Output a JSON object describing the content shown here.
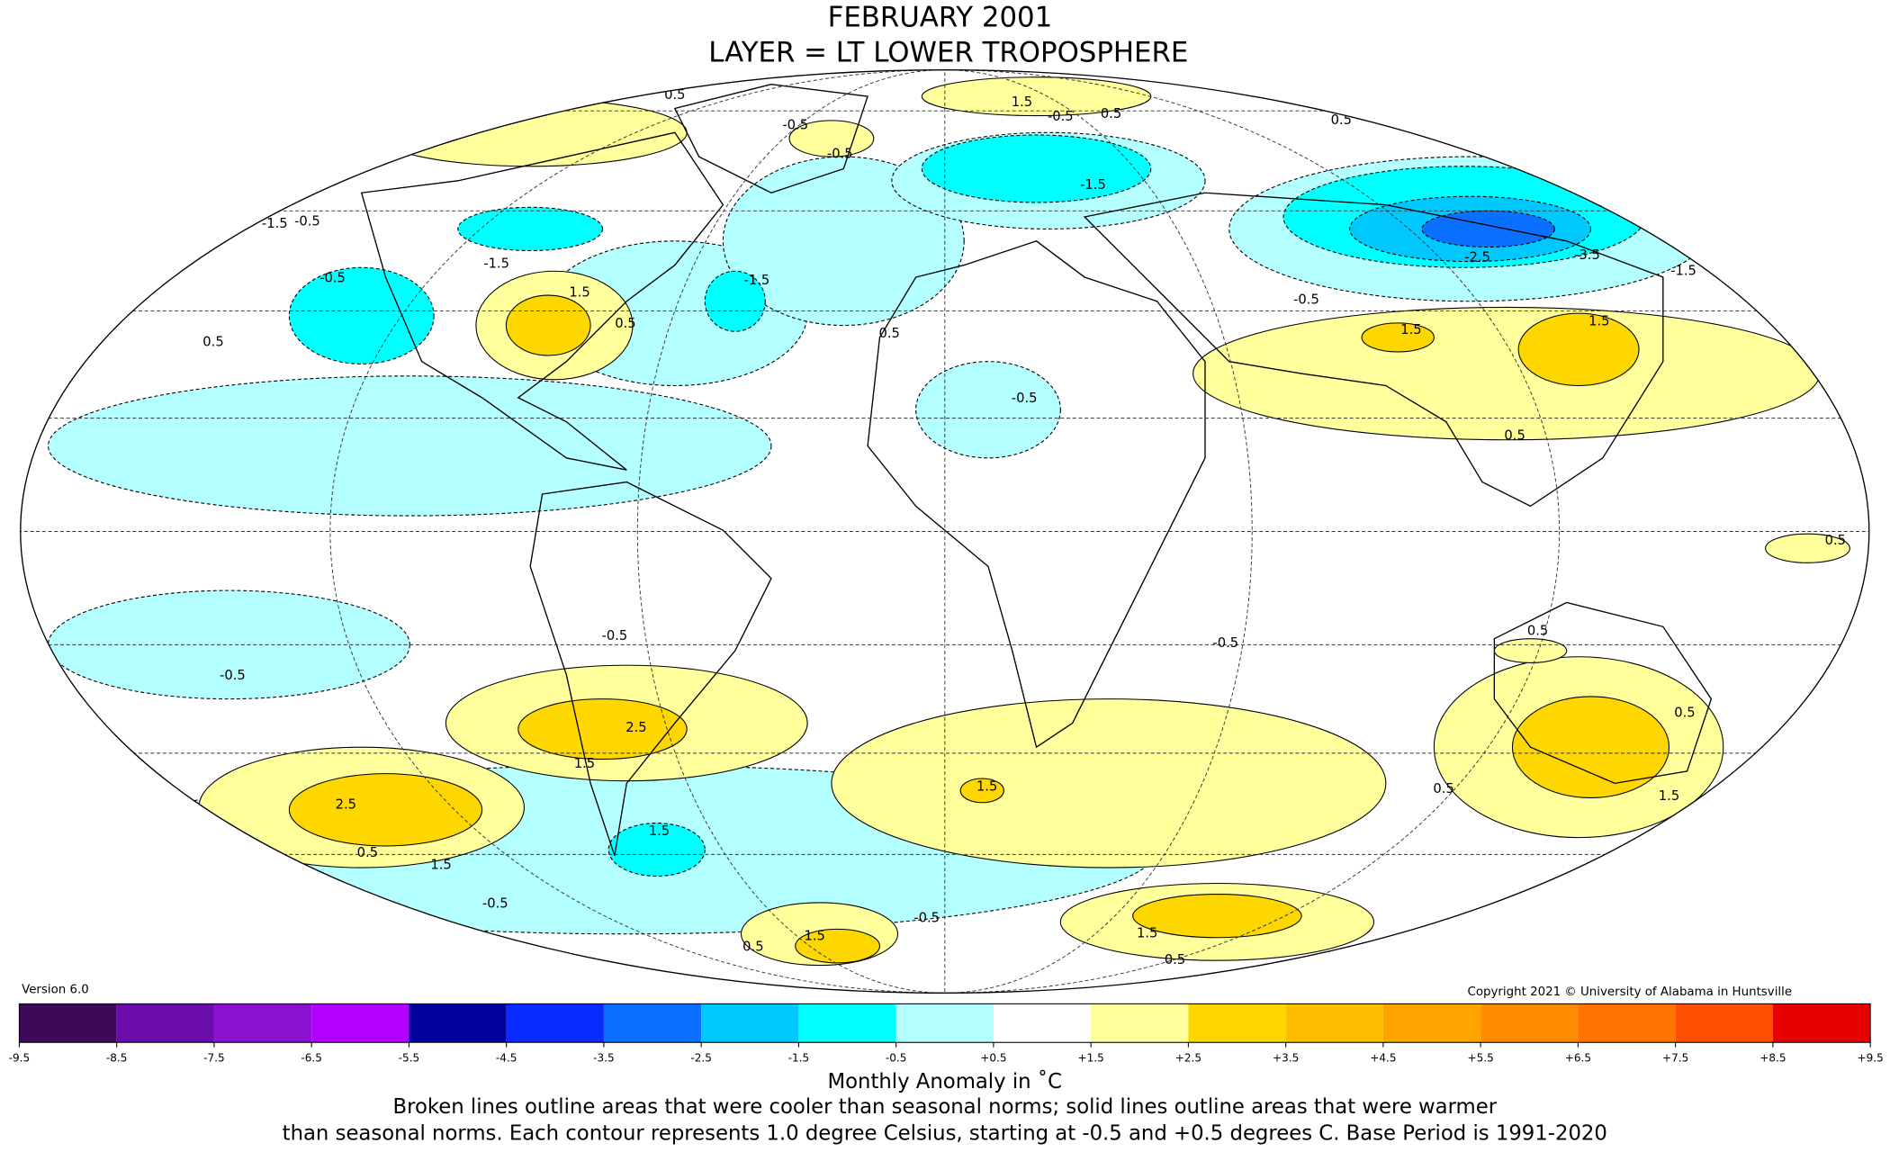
{
  "title": "FEBRUARY 2001",
  "subtitle": "LAYER = LT LOWER TROPOSPHERE",
  "version": "Version 6.0",
  "copyright": "Copyright 2021 © University of Alabama in Huntsville",
  "colorbar": {
    "label": "Monthly Anomaly in ˚C",
    "ticks": [
      -9.5,
      -8.5,
      -7.5,
      -6.5,
      -5.5,
      -4.5,
      -3.5,
      -2.5,
      -1.5,
      -0.5,
      {
        "value": 0.5,
        "label": "+0.5"
      },
      {
        "value": 1.5,
        "label": "+1.5"
      },
      {
        "value": 2.5,
        "label": "+2.5"
      },
      {
        "value": 3.5,
        "label": "+3.5"
      },
      {
        "value": 4.5,
        "label": "+4.5"
      },
      {
        "value": 5.5,
        "label": "+5.5"
      },
      {
        "value": 6.5,
        "label": "+6.5"
      },
      {
        "value": 7.5,
        "label": "+7.5"
      },
      {
        "value": 8.5,
        "label": "+8.5"
      },
      {
        "value": 9.5,
        "label": "+9.5"
      }
    ],
    "colors": [
      "#3d0a5a",
      "#6a0dab",
      "#8b10cf",
      "#b400ff",
      "#00009c",
      "#0a2bff",
      "#0a70ff",
      "#00c8ff",
      "#00ffff",
      "#b4ffff",
      "#ffffff",
      "#ffff9c",
      "#ffd700",
      "#ffbf00",
      "#ffa500",
      "#ff8c00",
      "#ff7300",
      "#ff4f00",
      "#e60000",
      "#c00000"
    ]
  },
  "caption": [
    "Broken lines outline areas that were cooler than seasonal norms; solid lines outline areas that were warmer",
    "than seasonal norms. Each contour represents 1.0 degree Celsius, starting at -0.5 and +0.5 degrees C. Base Period is 1991-2020"
  ],
  "contour_labels": [
    0.5,
    1.5,
    -0.5,
    0.5,
    0.5,
    -0.5,
    -0.5,
    -1.5,
    -1.5,
    -0.5,
    -1.5,
    -0.5,
    1.5,
    0.5,
    -1.5,
    0.5,
    0.5,
    -2.5,
    -3.5,
    -1.5,
    1.5,
    1.5,
    -0.5,
    0.5,
    0.5,
    -0.5,
    -0.5,
    -0.5,
    2.5,
    1.5,
    2.5,
    0.5,
    1.5,
    -0.5,
    1.5,
    1.5,
    -0.5,
    1.5,
    0.5,
    1.5,
    0.5,
    -0.5,
    0.5,
    0.5,
    1.5,
    0.5
  ]
}
